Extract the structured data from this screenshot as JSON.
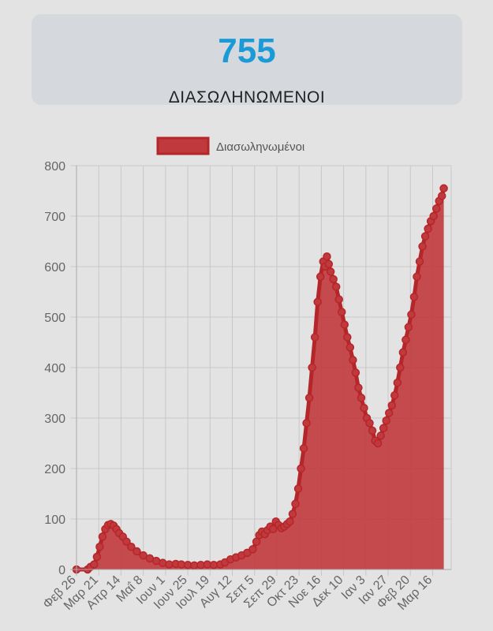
{
  "stat_card": {
    "value": "755",
    "label": "ΔΙΑΣΩΛΗΝΩΜΕΝΟΙ"
  },
  "colors": {
    "accent": "#1a9bd7",
    "line": "#b5262a",
    "fill": "#c0393c",
    "grid": "#c8c8c8"
  },
  "chart_data": {
    "type": "area",
    "legend": {
      "label": "Διασωληνωμένοι",
      "position": "top"
    },
    "grid": true,
    "ylim": [
      0,
      800
    ],
    "yticks": [
      0,
      100,
      200,
      300,
      400,
      500,
      600,
      700,
      800
    ],
    "xlim": [
      "2020-02-26",
      "2021-04-05"
    ],
    "xticks": [
      {
        "date": "2020-02-26",
        "label": "Φεβ 26"
      },
      {
        "date": "2020-03-21",
        "label": "Μαρ 21"
      },
      {
        "date": "2020-04-14",
        "label": "Απρ 14"
      },
      {
        "date": "2020-05-08",
        "label": "Μαΐ 8"
      },
      {
        "date": "2020-06-01",
        "label": "Ιουν 1"
      },
      {
        "date": "2020-06-25",
        "label": "Ιουν 25"
      },
      {
        "date": "2020-07-19",
        "label": "Ιουλ 19"
      },
      {
        "date": "2020-08-12",
        "label": "Αυγ 12"
      },
      {
        "date": "2020-09-05",
        "label": "Σεπ 5"
      },
      {
        "date": "2020-09-29",
        "label": "Σεπ 29"
      },
      {
        "date": "2020-10-23",
        "label": "Οκτ 23"
      },
      {
        "date": "2020-11-16",
        "label": "Νοε 16"
      },
      {
        "date": "2020-12-10",
        "label": "Δεκ 10"
      },
      {
        "date": "2021-01-03",
        "label": "Ιαν 3"
      },
      {
        "date": "2021-01-27",
        "label": "Ιαν 27"
      },
      {
        "date": "2021-02-20",
        "label": "Φεβ 20"
      },
      {
        "date": "2021-03-16",
        "label": "Μαρ 16"
      }
    ],
    "series": [
      {
        "name": "Διασωληνωμένοι",
        "points": [
          [
            "2020-02-26",
            0
          ],
          [
            "2020-03-09",
            0
          ],
          [
            "2020-03-12",
            5
          ],
          [
            "2020-03-16",
            10
          ],
          [
            "2020-03-19",
            25
          ],
          [
            "2020-03-22",
            45
          ],
          [
            "2020-03-25",
            65
          ],
          [
            "2020-03-28",
            80
          ],
          [
            "2020-03-31",
            88
          ],
          [
            "2020-04-03",
            90
          ],
          [
            "2020-04-06",
            87
          ],
          [
            "2020-04-09",
            80
          ],
          [
            "2020-04-12",
            72
          ],
          [
            "2020-04-16",
            65
          ],
          [
            "2020-04-20",
            55
          ],
          [
            "2020-04-25",
            45
          ],
          [
            "2020-05-01",
            36
          ],
          [
            "2020-05-08",
            28
          ],
          [
            "2020-05-15",
            22
          ],
          [
            "2020-05-22",
            17
          ],
          [
            "2020-05-29",
            13
          ],
          [
            "2020-06-05",
            10
          ],
          [
            "2020-06-12",
            11
          ],
          [
            "2020-06-18",
            10
          ],
          [
            "2020-06-25",
            9
          ],
          [
            "2020-07-02",
            8
          ],
          [
            "2020-07-09",
            9
          ],
          [
            "2020-07-16",
            10
          ],
          [
            "2020-07-23",
            9
          ],
          [
            "2020-07-30",
            10
          ],
          [
            "2020-08-04",
            14
          ],
          [
            "2020-08-10",
            20
          ],
          [
            "2020-08-16",
            24
          ],
          [
            "2020-08-22",
            28
          ],
          [
            "2020-08-28",
            33
          ],
          [
            "2020-09-03",
            40
          ],
          [
            "2020-09-07",
            55
          ],
          [
            "2020-09-10",
            68
          ],
          [
            "2020-09-13",
            75
          ],
          [
            "2020-09-16",
            70
          ],
          [
            "2020-09-19",
            78
          ],
          [
            "2020-09-22",
            85
          ],
          [
            "2020-09-25",
            80
          ],
          [
            "2020-09-28",
            95
          ],
          [
            "2020-10-01",
            88
          ],
          [
            "2020-10-04",
            82
          ],
          [
            "2020-10-07",
            85
          ],
          [
            "2020-10-10",
            90
          ],
          [
            "2020-10-13",
            95
          ],
          [
            "2020-10-16",
            110
          ],
          [
            "2020-10-19",
            130
          ],
          [
            "2020-10-22",
            160
          ],
          [
            "2020-10-25",
            200
          ],
          [
            "2020-10-28",
            240
          ],
          [
            "2020-10-31",
            290
          ],
          [
            "2020-11-03",
            340
          ],
          [
            "2020-11-06",
            400
          ],
          [
            "2020-11-09",
            460
          ],
          [
            "2020-11-12",
            530
          ],
          [
            "2020-11-15",
            580
          ],
          [
            "2020-11-18",
            610
          ],
          [
            "2020-11-20",
            600
          ],
          [
            "2020-11-22",
            620
          ],
          [
            "2020-11-24",
            605
          ],
          [
            "2020-11-26",
            590
          ],
          [
            "2020-11-29",
            575
          ],
          [
            "2020-12-02",
            560
          ],
          [
            "2020-12-05",
            535
          ],
          [
            "2020-12-08",
            510
          ],
          [
            "2020-12-11",
            485
          ],
          [
            "2020-12-14",
            460
          ],
          [
            "2020-12-17",
            440
          ],
          [
            "2020-12-20",
            415
          ],
          [
            "2020-12-23",
            390
          ],
          [
            "2020-12-26",
            360
          ],
          [
            "2020-12-29",
            340
          ],
          [
            "2021-01-01",
            320
          ],
          [
            "2021-01-04",
            300
          ],
          [
            "2021-01-07",
            290
          ],
          [
            "2021-01-10",
            275
          ],
          [
            "2021-01-13",
            255
          ],
          [
            "2021-01-16",
            250
          ],
          [
            "2021-01-19",
            265
          ],
          [
            "2021-01-22",
            280
          ],
          [
            "2021-01-25",
            295
          ],
          [
            "2021-01-28",
            310
          ],
          [
            "2021-01-31",
            325
          ],
          [
            "2021-02-03",
            345
          ],
          [
            "2021-02-06",
            370
          ],
          [
            "2021-02-09",
            400
          ],
          [
            "2021-02-12",
            430
          ],
          [
            "2021-02-15",
            455
          ],
          [
            "2021-02-18",
            480
          ],
          [
            "2021-02-21",
            505
          ],
          [
            "2021-02-24",
            540
          ],
          [
            "2021-02-27",
            580
          ],
          [
            "2021-03-02",
            610
          ],
          [
            "2021-03-05",
            640
          ],
          [
            "2021-03-08",
            660
          ],
          [
            "2021-03-11",
            675
          ],
          [
            "2021-03-14",
            690
          ],
          [
            "2021-03-17",
            700
          ],
          [
            "2021-03-20",
            715
          ],
          [
            "2021-03-23",
            730
          ],
          [
            "2021-03-26",
            740
          ],
          [
            "2021-03-28",
            755
          ]
        ]
      }
    ]
  }
}
